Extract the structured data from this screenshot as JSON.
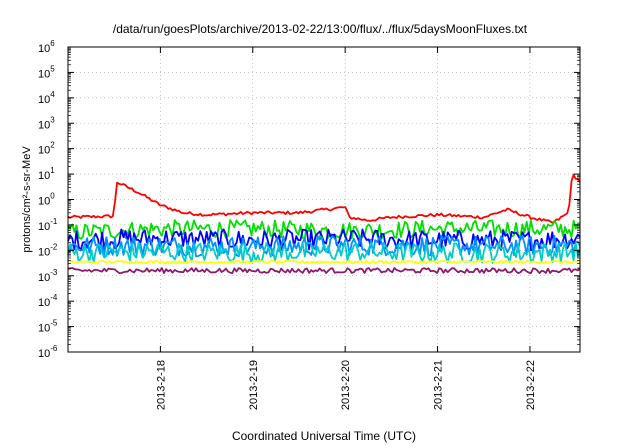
{
  "chart_data": {
    "type": "line",
    "title": "/data/run/goesPlots/archive/2013-02-22/13:00/flux/../flux/5daysMoonFluxes.txt",
    "xlabel": "Coordinated Universal Time (UTC)",
    "ylabel": "protons/cm²-s-sr-MeV",
    "y_scale": "log",
    "ylim": [
      1e-06,
      1000000.0
    ],
    "y_ticks": [
      {
        "base": "10",
        "exp": "-6"
      },
      {
        "base": "10",
        "exp": "-5"
      },
      {
        "base": "10",
        "exp": "-4"
      },
      {
        "base": "10",
        "exp": "-3"
      },
      {
        "base": "10",
        "exp": "-2"
      },
      {
        "base": "10",
        "exp": "-1"
      },
      {
        "base": "10",
        "exp": "0"
      },
      {
        "base": "10",
        "exp": "1"
      },
      {
        "base": "10",
        "exp": "2"
      },
      {
        "base": "10",
        "exp": "3"
      },
      {
        "base": "10",
        "exp": "4"
      },
      {
        "base": "10",
        "exp": "5"
      },
      {
        "base": "10",
        "exp": "6"
      }
    ],
    "xlim": [
      "2013-02-17T00:00",
      "2013-02-22T13:00"
    ],
    "x_ticks": [
      "2013-2-18",
      "2013-2-19",
      "2013-2-20",
      "2013-2-21",
      "2013-2-22"
    ],
    "x_tick_dates": [
      "2013-02-18T00:00",
      "2013-02-19T00:00",
      "2013-02-20T00:00",
      "2013-02-21T00:00",
      "2013-02-22T00:00"
    ],
    "grid": true,
    "series": [
      {
        "color": "#ff0000",
        "noise": 0.06,
        "x": [
          "2013-02-17T00:00",
          "2013-02-17T12:00",
          "2013-02-17T12:30",
          "2013-02-17T18:00",
          "2013-02-18T00:00",
          "2013-02-18T06:00",
          "2013-02-18T12:00",
          "2013-02-19T00:00",
          "2013-02-19T12:00",
          "2013-02-20T00:00",
          "2013-02-20T01:00",
          "2013-02-20T06:00",
          "2013-02-20T12:00",
          "2013-02-21T00:00",
          "2013-02-21T12:00",
          "2013-02-21T18:00",
          "2013-02-22T00:00",
          "2013-02-22T06:00",
          "2013-02-22T10:00",
          "2013-02-22T11:00",
          "2013-02-22T13:00"
        ],
        "y": [
          0.2,
          0.22,
          5,
          2,
          0.6,
          0.3,
          0.25,
          0.3,
          0.3,
          0.5,
          0.2,
          0.15,
          0.2,
          0.25,
          0.2,
          0.4,
          0.2,
          0.12,
          0.3,
          10,
          5
        ]
      },
      {
        "color": "#00e000",
        "noise": 0.35,
        "x": [
          "2013-02-17T00:00",
          "2013-02-18T00:00",
          "2013-02-19T00:00",
          "2013-02-20T00:00",
          "2013-02-21T00:00",
          "2013-02-22T00:00",
          "2013-02-22T13:00"
        ],
        "y": [
          0.05,
          0.07,
          0.07,
          0.06,
          0.07,
          0.07,
          0.07
        ]
      },
      {
        "color": "#0000ff",
        "noise": 0.4,
        "x": [
          "2013-02-17T00:00",
          "2013-02-18T00:00",
          "2013-02-19T00:00",
          "2013-02-20T00:00",
          "2013-02-21T00:00",
          "2013-02-22T00:00",
          "2013-02-22T13:00"
        ],
        "y": [
          0.025,
          0.03,
          0.025,
          0.028,
          0.025,
          0.025,
          0.03
        ]
      },
      {
        "color": "#0090ff",
        "noise": 0.4,
        "x": [
          "2013-02-17T00:00",
          "2013-02-18T00:00",
          "2013-02-19T00:00",
          "2013-02-20T00:00",
          "2013-02-21T00:00",
          "2013-02-22T00:00",
          "2013-02-22T13:00"
        ],
        "y": [
          0.015,
          0.015,
          0.014,
          0.016,
          0.015,
          0.015,
          0.016
        ]
      },
      {
        "color": "#00cccc",
        "noise": 0.4,
        "x": [
          "2013-02-17T00:00",
          "2013-02-18T00:00",
          "2013-02-19T00:00",
          "2013-02-20T00:00",
          "2013-02-21T00:00",
          "2013-02-22T00:00",
          "2013-02-22T13:00"
        ],
        "y": [
          0.008,
          0.009,
          0.008,
          0.009,
          0.008,
          0.008,
          0.009
        ]
      },
      {
        "color": "#ffff00",
        "noise": 0.05,
        "x": [
          "2013-02-17T00:00",
          "2013-02-18T00:00",
          "2013-02-19T00:00",
          "2013-02-20T00:00",
          "2013-02-21T00:00",
          "2013-02-22T00:00",
          "2013-02-22T13:00"
        ],
        "y": [
          0.0035,
          0.0035,
          0.0035,
          0.0035,
          0.0035,
          0.0035,
          0.0035
        ]
      },
      {
        "color": "#8b1a6b",
        "noise": 0.1,
        "x": [
          "2013-02-17T00:00",
          "2013-02-18T00:00",
          "2013-02-19T00:00",
          "2013-02-20T00:00",
          "2013-02-21T00:00",
          "2013-02-22T00:00",
          "2013-02-22T13:00"
        ],
        "y": [
          0.0016,
          0.0016,
          0.0016,
          0.0016,
          0.0016,
          0.0016,
          0.0016
        ]
      }
    ]
  }
}
